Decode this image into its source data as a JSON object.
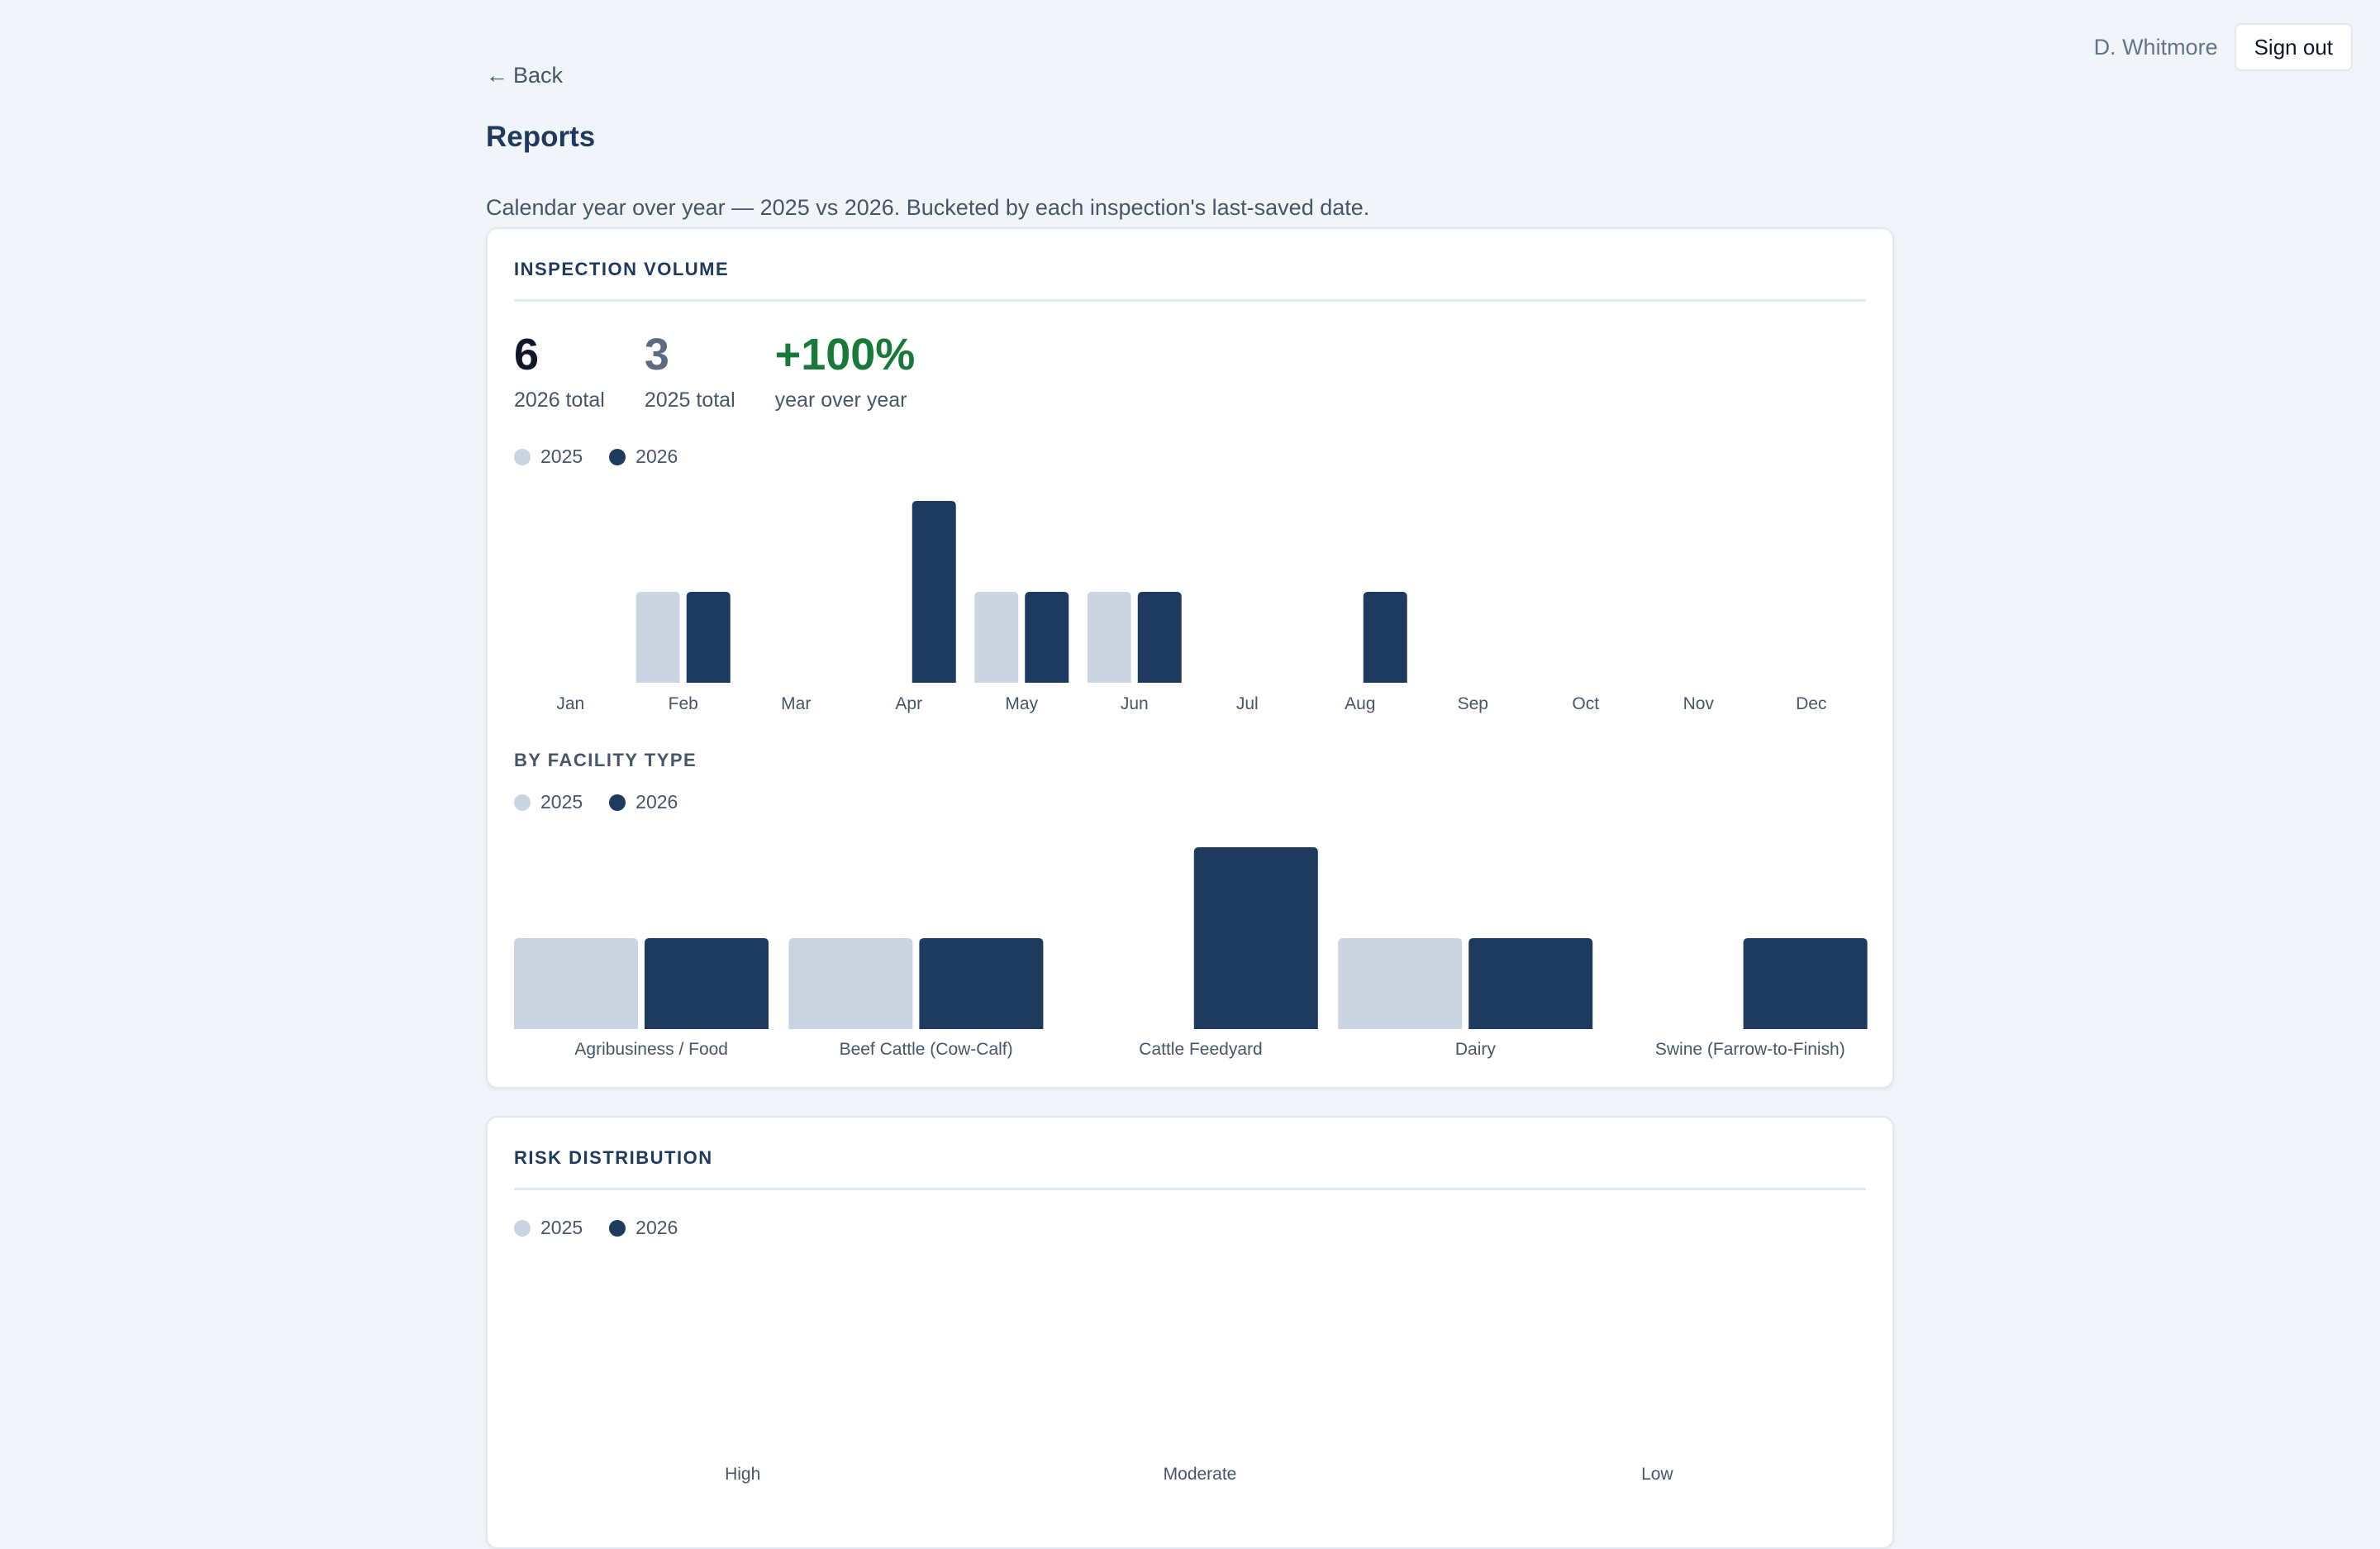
{
  "header": {
    "user_name": "D. Whitmore",
    "sign_out_label": "Sign out"
  },
  "nav": {
    "back_label": "Back"
  },
  "page": {
    "title": "Reports",
    "subtitle": "Calendar year over year — 2025 vs 2026. Bucketed by each inspection's last-saved date."
  },
  "colors": {
    "series_2025": "#cbd5e1",
    "series_2026": "#1e3a5f",
    "positive": "#177a3a"
  },
  "volume": {
    "section_title": "INSPECTION VOLUME",
    "stats": [
      {
        "value": "6",
        "label": "2026 total"
      },
      {
        "value": "3",
        "label": "2025 total"
      },
      {
        "value": "+100%",
        "label": "year over year"
      }
    ],
    "legend": [
      "2025",
      "2026"
    ]
  },
  "facility": {
    "section_title": "BY FACILITY TYPE",
    "legend": [
      "2025",
      "2026"
    ]
  },
  "risk": {
    "section_title": "RISK DISTRIBUTION",
    "legend": [
      "2025",
      "2026"
    ]
  },
  "chart_data": [
    {
      "id": "monthly",
      "type": "bar",
      "categories": [
        "Jan",
        "Feb",
        "Mar",
        "Apr",
        "May",
        "Jun",
        "Jul",
        "Aug",
        "Sep",
        "Oct",
        "Nov",
        "Dec"
      ],
      "series": [
        {
          "name": "2025",
          "values": [
            0,
            1,
            0,
            0,
            1,
            1,
            0,
            0,
            0,
            0,
            0,
            0
          ]
        },
        {
          "name": "2026",
          "values": [
            0,
            1,
            0,
            2,
            1,
            1,
            0,
            1,
            0,
            0,
            0,
            0
          ]
        }
      ],
      "ylim": [
        0,
        2
      ]
    },
    {
      "id": "facility",
      "type": "bar",
      "categories": [
        "Agribusiness / Food",
        "Beef Cattle (Cow-Calf)",
        "Cattle Feedyard",
        "Dairy",
        "Swine (Farrow-to-Finish)"
      ],
      "series": [
        {
          "name": "2025",
          "values": [
            1,
            1,
            0,
            1,
            0
          ]
        },
        {
          "name": "2026",
          "values": [
            1,
            1,
            2,
            1,
            1
          ]
        }
      ],
      "ylim": [
        0,
        2
      ]
    },
    {
      "id": "risk",
      "type": "bar",
      "categories": [
        "High",
        "Moderate",
        "Low"
      ],
      "series": [
        {
          "name": "2025",
          "values": [
            0,
            0,
            0
          ]
        },
        {
          "name": "2026",
          "values": [
            0,
            0,
            0
          ]
        }
      ]
    }
  ]
}
